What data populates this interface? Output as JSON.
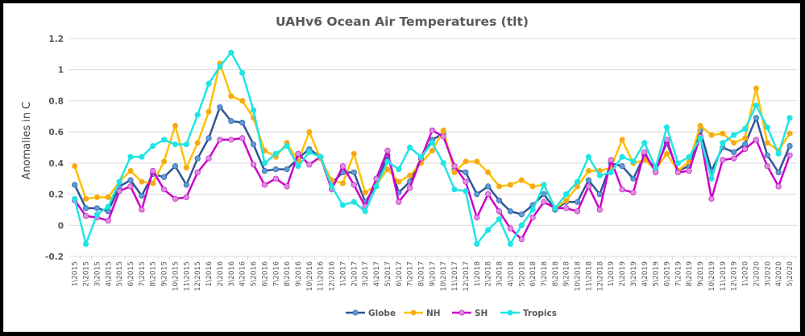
{
  "chart_data": {
    "type": "line",
    "title": "UAHv6 Ocean Air Temperatures (tlt)",
    "xlabel": "",
    "ylabel": "Anomalies in C",
    "ylim": [
      -0.2,
      1.2
    ],
    "yticks": [
      "1.2",
      "1",
      "0.8",
      "0.6",
      "0.4",
      "0.2",
      "0",
      "-0.2"
    ],
    "ytick_values": [
      1.2,
      1.0,
      0.8,
      0.6,
      0.4,
      0.2,
      0,
      -0.2
    ],
    "grid": true,
    "legend_position": "bottom",
    "x": [
      "1\\2015",
      "2\\2015",
      "3\\2015",
      "4\\2015",
      "5\\2015",
      "6\\2015",
      "7\\2015",
      "8\\2015",
      "9\\2015",
      "10\\2015",
      "11\\2015",
      "12\\2015",
      "1\\2016",
      "2\\2016",
      "3\\2016",
      "4\\2016",
      "5\\2016",
      "6\\2016",
      "7\\2016",
      "8\\2016",
      "9\\2016",
      "10\\2016",
      "11\\2016",
      "12\\2016",
      "1\\2017",
      "2\\2017",
      "3\\2017",
      "4\\2017",
      "5\\2017",
      "6\\2017",
      "7\\2017",
      "8\\2017",
      "9\\2017",
      "10\\2017",
      "11\\2017",
      "12\\2017",
      "1\\2018",
      "2\\2018",
      "3\\2018",
      "4\\2018",
      "5\\2018",
      "6\\2018",
      "7\\2018",
      "8\\2018",
      "9\\2018",
      "10\\2018",
      "11\\2018",
      "12\\2018",
      "1\\2019",
      "2\\2019",
      "3\\2019",
      "4\\2019",
      "5\\2019",
      "6\\2019",
      "7\\2019",
      "8\\2019",
      "9\\2019",
      "10\\2019",
      "11\\2019",
      "12\\2019",
      "1\\2020",
      "2\\2020",
      "3\\2020",
      "4\\2020",
      "5\\2020"
    ],
    "series": [
      {
        "name": "Globe",
        "line_color": "#2F5597",
        "marker_color": "#5B9BD5",
        "values": [
          0.26,
          0.11,
          0.11,
          0.09,
          0.25,
          0.29,
          0.19,
          0.33,
          0.31,
          0.38,
          0.26,
          0.43,
          0.56,
          0.76,
          0.67,
          0.66,
          0.52,
          0.35,
          0.36,
          0.36,
          0.43,
          0.49,
          0.44,
          0.27,
          0.34,
          0.34,
          0.15,
          0.26,
          0.45,
          0.21,
          0.28,
          0.43,
          0.55,
          0.59,
          0.36,
          0.34,
          0.2,
          0.25,
          0.16,
          0.09,
          0.07,
          0.13,
          0.2,
          0.1,
          0.15,
          0.15,
          0.29,
          0.2,
          0.4,
          0.38,
          0.3,
          0.45,
          0.36,
          0.53,
          0.35,
          0.38,
          0.61,
          0.35,
          0.5,
          0.47,
          0.52,
          0.69,
          0.45,
          0.34,
          0.51
        ]
      },
      {
        "name": "NH",
        "line_color": "#FFC000",
        "marker_color": "#F5A623",
        "values": [
          0.38,
          0.17,
          0.18,
          0.18,
          0.28,
          0.35,
          0.28,
          0.27,
          0.41,
          0.64,
          0.37,
          0.53,
          0.73,
          1.04,
          0.83,
          0.8,
          0.69,
          0.48,
          0.44,
          0.53,
          0.41,
          0.6,
          0.43,
          0.29,
          0.27,
          0.46,
          0.21,
          0.26,
          0.36,
          0.28,
          0.32,
          0.4,
          0.48,
          0.61,
          0.34,
          0.41,
          0.41,
          0.34,
          0.25,
          0.26,
          0.29,
          0.25,
          0.26,
          0.11,
          0.16,
          0.25,
          0.35,
          0.35,
          0.37,
          0.55,
          0.4,
          0.42,
          0.36,
          0.46,
          0.35,
          0.41,
          0.64,
          0.58,
          0.59,
          0.53,
          0.56,
          0.88,
          0.53,
          0.48,
          0.59
        ]
      },
      {
        "name": "SH",
        "line_color": "#CC00CC",
        "marker_color": "#DA8FDA",
        "values": [
          0.16,
          0.06,
          0.05,
          0.03,
          0.22,
          0.25,
          0.1,
          0.35,
          0.23,
          0.17,
          0.18,
          0.34,
          0.43,
          0.55,
          0.55,
          0.56,
          0.39,
          0.26,
          0.3,
          0.25,
          0.46,
          0.39,
          0.44,
          0.23,
          0.38,
          0.26,
          0.12,
          0.3,
          0.48,
          0.15,
          0.24,
          0.43,
          0.61,
          0.57,
          0.38,
          0.28,
          0.05,
          0.2,
          0.09,
          -0.02,
          -0.09,
          0.05,
          0.15,
          0.11,
          0.11,
          0.09,
          0.25,
          0.1,
          0.42,
          0.23,
          0.21,
          0.47,
          0.34,
          0.55,
          0.34,
          0.35,
          0.57,
          0.17,
          0.42,
          0.43,
          0.49,
          0.55,
          0.38,
          0.25,
          0.45
        ]
      },
      {
        "name": "Tropics",
        "line_color": "#1FE5E5",
        "marker_color": "#1FE5E5",
        "values": [
          0.17,
          -0.12,
          0.07,
          0.12,
          0.28,
          0.44,
          0.44,
          0.51,
          0.55,
          0.52,
          0.52,
          0.71,
          0.91,
          1.02,
          1.11,
          0.98,
          0.74,
          0.4,
          0.46,
          0.51,
          0.38,
          0.47,
          0.44,
          0.25,
          0.13,
          0.15,
          0.09,
          0.25,
          0.41,
          0.36,
          0.5,
          0.44,
          0.53,
          0.4,
          0.23,
          0.22,
          -0.12,
          -0.03,
          0.04,
          -0.12,
          0.0,
          0.1,
          0.26,
          0.11,
          0.2,
          0.28,
          0.44,
          0.32,
          0.34,
          0.44,
          0.41,
          0.53,
          0.37,
          0.63,
          0.4,
          0.44,
          0.56,
          0.3,
          0.53,
          0.58,
          0.62,
          0.77,
          0.63,
          0.46,
          0.69
        ]
      }
    ]
  }
}
